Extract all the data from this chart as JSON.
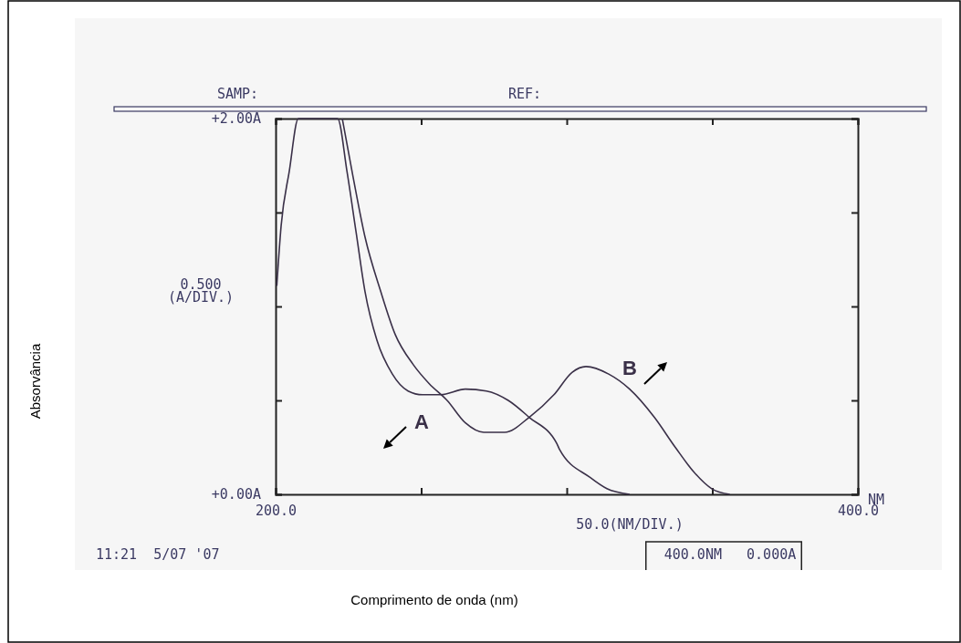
{
  "chart_data": {
    "type": "line",
    "xlim": [
      200,
      400
    ],
    "ylim": [
      0,
      2
    ],
    "xticks": [
      {
        "value": 200,
        "label": "200.0"
      },
      {
        "value": 250,
        "label": null
      },
      {
        "value": 300,
        "label": null
      },
      {
        "value": 350,
        "label": null
      },
      {
        "value": 400,
        "label": "400.0"
      }
    ],
    "yticks": [
      {
        "value": 0,
        "label": "+0.00A"
      },
      {
        "value": 0.5,
        "label": null
      },
      {
        "value": 1,
        "label": null
      },
      {
        "value": 1.5,
        "label": null
      },
      {
        "value": 2,
        "label": "+2.00A"
      }
    ],
    "grid": false,
    "marker": "none",
    "line_style": "solid",
    "annotations": [
      "SAMP:",
      "REF:",
      "0.500 (A/DIV.)",
      "50.0(NM/DIV.)",
      "NM",
      "11:21  5/07 '07",
      "400.0NM   0.000A",
      "Absorvância",
      "Comprimento de onda (nm)"
    ],
    "series": [
      {
        "name": "A",
        "color": "#3a3048",
        "x": [
          200.4,
          201.9,
          204.7,
          207.8,
          221.3,
          224.5,
          227.6,
          230.7,
          234.8,
          240.1,
          245.5,
          250.5,
          256.7,
          265.2,
          272.4,
          279.9,
          287.1,
          296.6,
          297.5,
          308,
          313.8,
          321.6
        ],
        "values": [
          1.11,
          1.43,
          1.72,
          2.0,
          2.0,
          1.72,
          1.4,
          1.08,
          0.82,
          0.64,
          0.55,
          0.53,
          0.53,
          0.56,
          0.55,
          0.5,
          0.41,
          0.27,
          0.24,
          0.09,
          0.03,
          0
        ]
      },
      {
        "name": "B",
        "color": "#3a3048",
        "x": [
          222.9,
          226.6,
          230.7,
          236.1,
          241.1,
          247.3,
          252.7,
          258.9,
          265.2,
          271.5,
          278.7,
          287.1,
          295.6,
          301.9,
          306.6,
          314.4,
          321.6,
          330.1,
          337.3,
          343.6,
          349.8,
          356
        ],
        "values": [
          2.0,
          1.69,
          1.37,
          1.08,
          0.85,
          0.69,
          0.59,
          0.5,
          0.38,
          0.33,
          0.33,
          0.41,
          0.53,
          0.65,
          0.68,
          0.64,
          0.56,
          0.41,
          0.25,
          0.12,
          0.03,
          0
        ]
      }
    ]
  }
}
